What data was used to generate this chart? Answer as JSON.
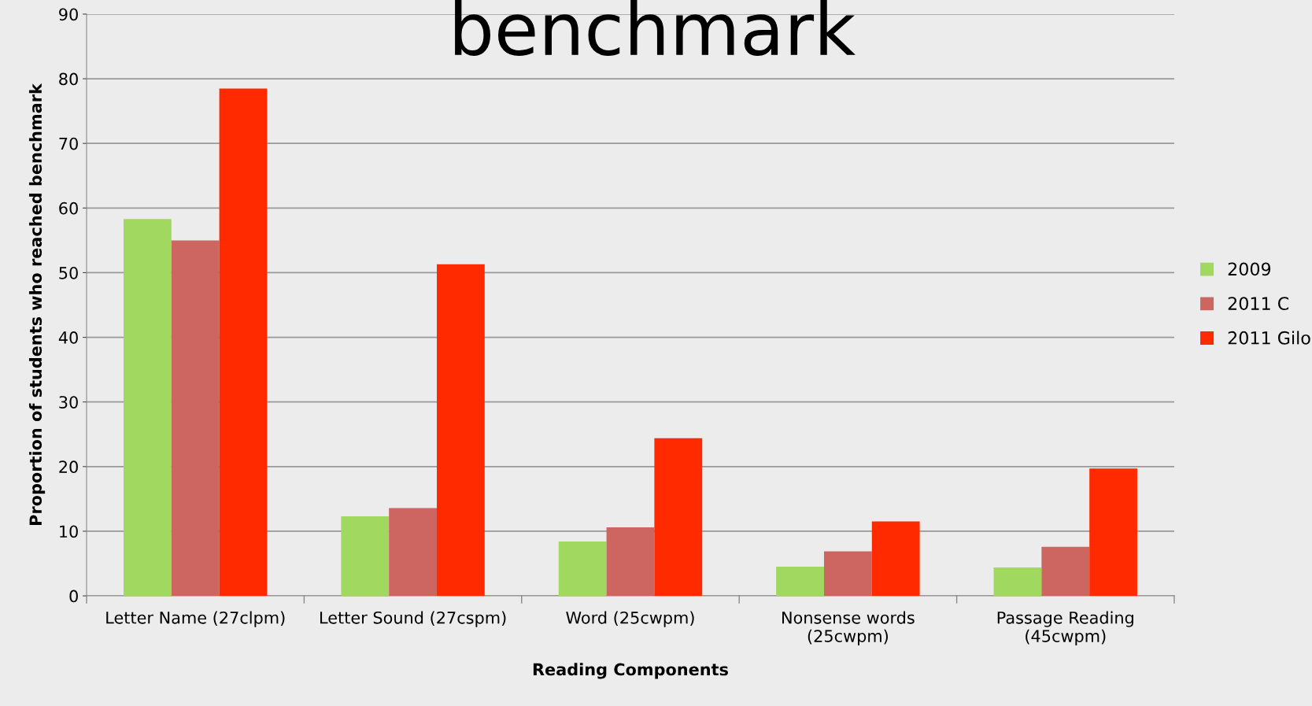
{
  "chart_data": {
    "type": "bar",
    "title": "benchmark",
    "xlabel": "Reading Components",
    "ylabel": "Proportion of students who reached benchmark",
    "categories": [
      "Letter Name (27clpm)",
      "Letter Sound (27cspm)",
      "Word (25cwpm)",
      "Nonsense words\n(25cwpm)",
      "Passage Reading\n(45cwpm)"
    ],
    "series": [
      {
        "name": "2009",
        "color": "#a0d860",
        "values": [
          58.3,
          12.3,
          8.4,
          4.5,
          4.4
        ]
      },
      {
        "name": "2011 C",
        "color": "#cd6660",
        "values": [
          55.0,
          13.6,
          10.6,
          6.9,
          7.6
        ]
      },
      {
        "name": "2011 Gilo",
        "color": "#ff2a00",
        "values": [
          78.5,
          51.3,
          24.4,
          11.5,
          19.7
        ]
      }
    ],
    "ylim": [
      0,
      90
    ],
    "yticks": [
      0,
      10,
      20,
      30,
      40,
      50,
      60,
      70,
      80,
      90
    ],
    "grid": "y",
    "legend": "right"
  }
}
